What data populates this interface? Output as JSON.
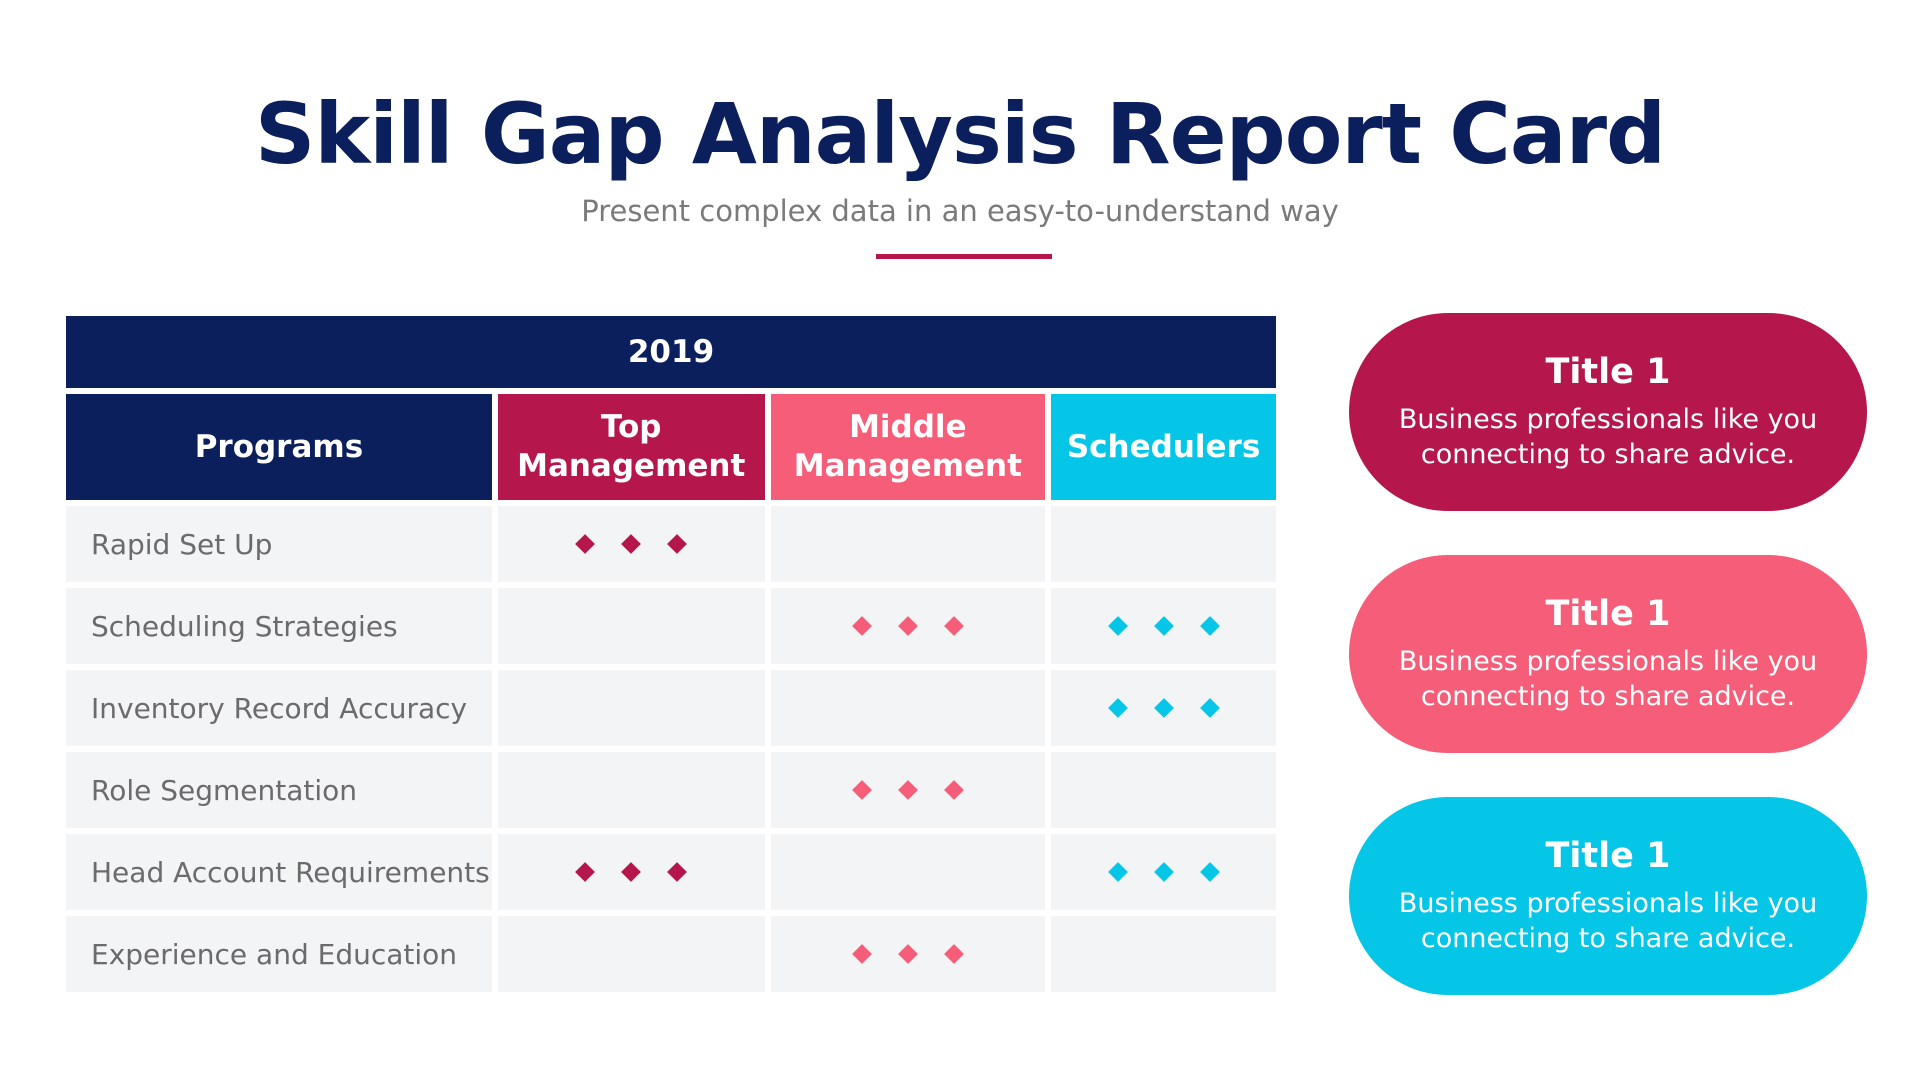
{
  "header": {
    "title": "Skill Gap Analysis Report Card",
    "subtitle": "Present complex data in an easy-to-understand way"
  },
  "table": {
    "year": "2019",
    "columns": {
      "programs": "Programs",
      "top": "Top Management",
      "middle": "Middle Management",
      "schedulers": "Schedulers"
    },
    "rows": [
      {
        "program": "Rapid Set Up",
        "top": true,
        "middle": false,
        "schedulers": false
      },
      {
        "program": "Scheduling Strategies",
        "top": false,
        "middle": true,
        "schedulers": true
      },
      {
        "program": "Inventory Record Accuracy",
        "top": false,
        "middle": false,
        "schedulers": true
      },
      {
        "program": "Role Segmentation",
        "top": false,
        "middle": true,
        "schedulers": false
      },
      {
        "program": "Head Account Requirements",
        "top": true,
        "middle": false,
        "schedulers": true
      },
      {
        "program": "Experience and Education",
        "top": false,
        "middle": true,
        "schedulers": false
      }
    ]
  },
  "cards": [
    {
      "title": "Title 1",
      "text": "Business professionals like you connecting to share advice."
    },
    {
      "title": "Title 1",
      "text": "Business professionals like you connecting to share advice."
    },
    {
      "title": "Title 1",
      "text": "Business professionals like you connecting to share advice."
    }
  ],
  "colors": {
    "navy": "#0a1f5c",
    "top": "#b5164b",
    "middle": "#f55d78",
    "schedulers": "#06c6e8"
  },
  "marker_icon": "diamond-icon"
}
